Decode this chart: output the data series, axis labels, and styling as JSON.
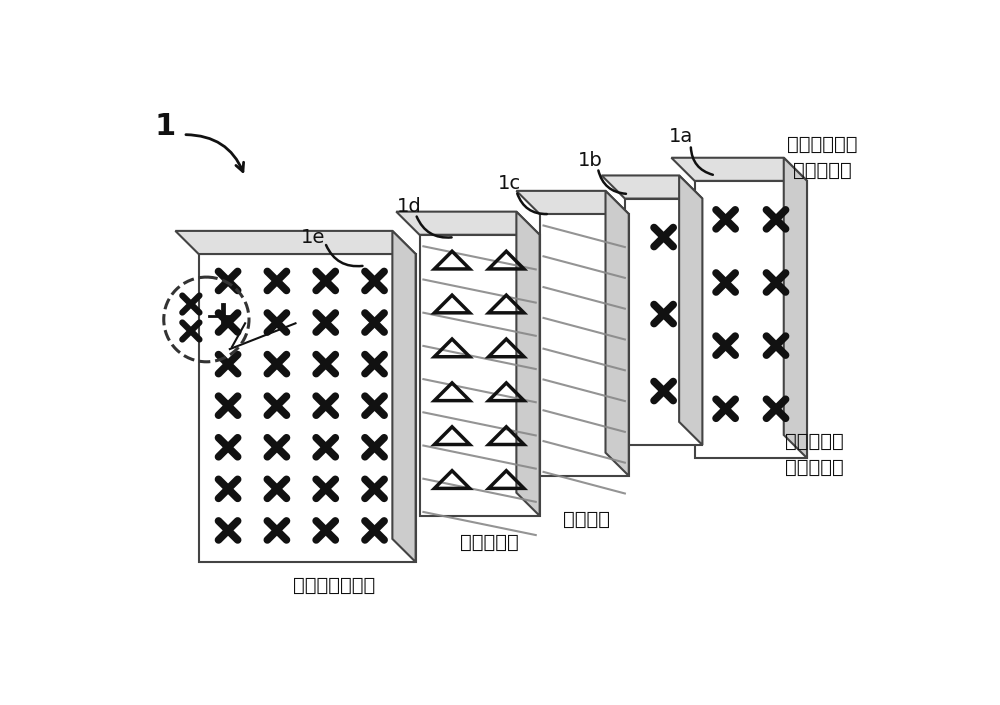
{
  "bg_color": "#ffffff",
  "label_1": "1",
  "label_1a": "1a",
  "label_1b": "1b",
  "label_1c": "1c",
  "label_1d": "1d",
  "label_1e": "1e",
  "text_virtual_port": "在基带处形成\n的虚拟端口",
  "text_port_reduce": "端口减少",
  "text_radio_array": "无线电阵列",
  "text_physical_array": "物理元件的阵列",
  "text_accessible_port": "可以从基带\n接入的端口",
  "edge_color": "#444444",
  "cross_color": "#111111",
  "triangle_color": "#111111",
  "face_color": "#ffffff",
  "top_color": "#e0e0e0",
  "right_color": "#cccccc",
  "diag_color": "#888888"
}
